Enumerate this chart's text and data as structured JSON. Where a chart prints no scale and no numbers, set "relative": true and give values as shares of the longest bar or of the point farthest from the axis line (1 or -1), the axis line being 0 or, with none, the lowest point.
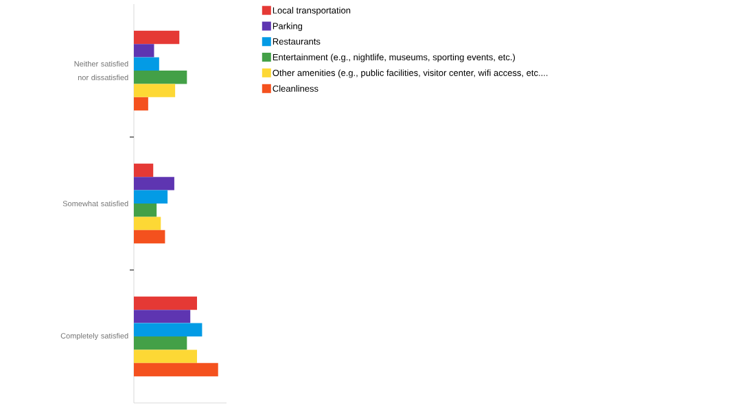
{
  "chart_data": {
    "type": "bar",
    "orientation": "horizontal",
    "relative": true,
    "legend": "top right",
    "categories": [
      "Neither satisfied nor dissatisfied",
      "Somewhat satisfied",
      "Completely satisfied"
    ],
    "series": [
      {
        "name": "Local transportation",
        "color": "#e53935",
        "values": [
          0.54,
          0.23,
          0.75
        ]
      },
      {
        "name": "Parking",
        "color": "#5e35b1",
        "values": [
          0.24,
          0.48,
          0.67
        ]
      },
      {
        "name": "Restaurants",
        "color": "#039be5",
        "values": [
          0.3,
          0.4,
          0.81
        ]
      },
      {
        "name": "Entertainment (e.g., nightlife, museums, sporting events, etc.)",
        "color": "#43a047",
        "values": [
          0.63,
          0.27,
          0.63
        ]
      },
      {
        "name": "Other amenities (e.g., public facilities, visitor center, wifi access, etc....",
        "color": "#fdd835",
        "values": [
          0.49,
          0.32,
          0.75
        ]
      },
      {
        "name": "Cleanliness",
        "color": "#f4511e",
        "values": [
          0.17,
          0.37,
          1
        ]
      }
    ]
  }
}
